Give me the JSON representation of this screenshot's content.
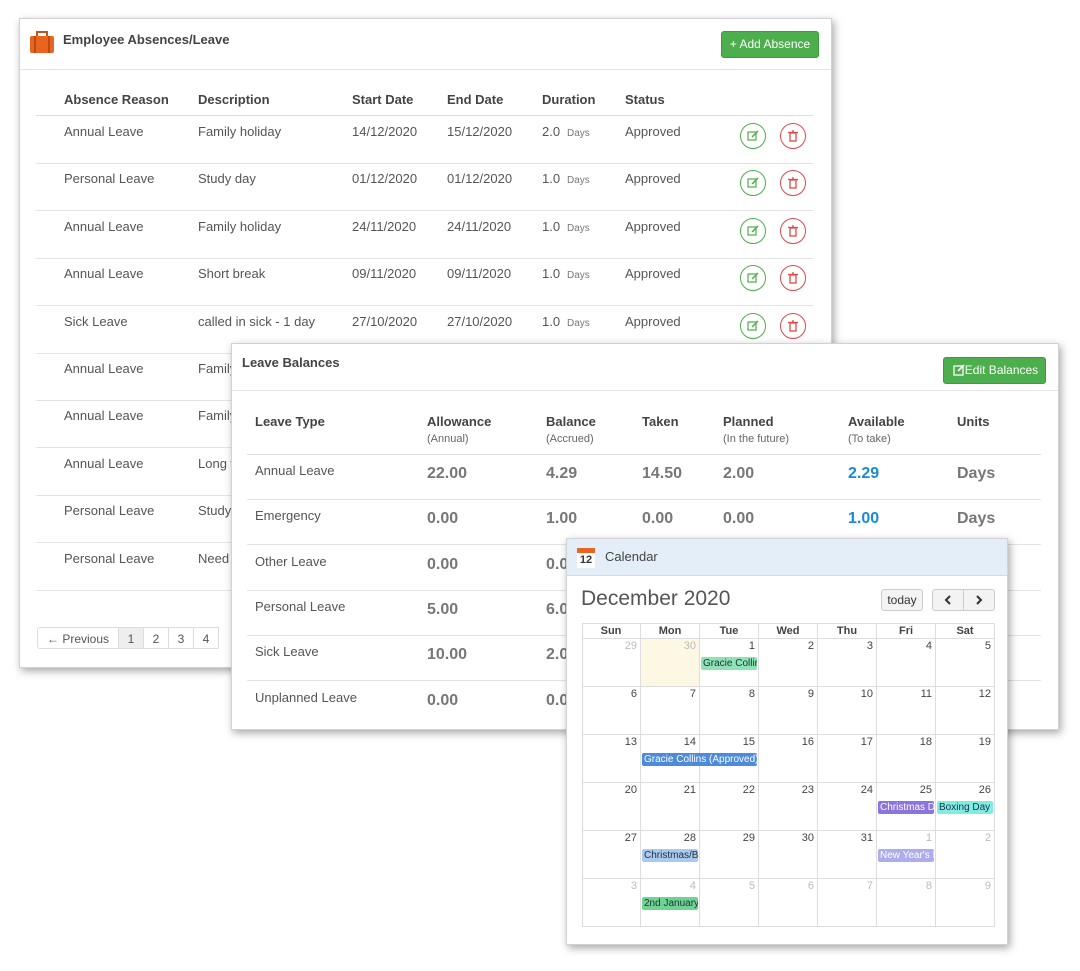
{
  "absences": {
    "title": "Employee Absences/Leave",
    "add_button": "+ Add Absence",
    "columns": [
      "Absence Reason",
      "Description",
      "Start Date",
      "End Date",
      "Duration",
      "Status"
    ],
    "rows": [
      [
        "Annual Leave",
        "Family holiday",
        "14/12/2020",
        "15/12/2020",
        "2.0",
        "Days",
        "Approved"
      ],
      [
        "Personal Leave",
        "Study day",
        "01/12/2020",
        "01/12/2020",
        "1.0",
        "Days",
        "Approved"
      ],
      [
        "Annual Leave",
        "Family holiday",
        "24/11/2020",
        "24/11/2020",
        "1.0",
        "Days",
        "Approved"
      ],
      [
        "Annual Leave",
        "Short break",
        "09/11/2020",
        "09/11/2020",
        "1.0",
        "Days",
        "Approved"
      ],
      [
        "Sick Leave",
        "called in sick - 1 day",
        "27/10/2020",
        "27/10/2020",
        "1.0",
        "Days",
        "Approved"
      ],
      [
        "Annual Leave",
        "Family"
      ],
      [
        "Annual Leave",
        "Family"
      ],
      [
        "Annual Leave",
        "Long w"
      ],
      [
        "Personal Leave",
        "Study"
      ],
      [
        "Personal Leave",
        "Need"
      ]
    ],
    "pagination": [
      "← Previous",
      "1",
      "2",
      "3",
      "4"
    ]
  },
  "balances": {
    "title": "Leave Balances",
    "edit_button": "Edit Balances",
    "columns": [
      {
        "label": "Leave Type"
      },
      {
        "label": "Allowance",
        "sub": "(Annual)"
      },
      {
        "label": "Balance",
        "sub": "(Accrued)"
      },
      {
        "label": "Taken"
      },
      {
        "label": "Planned",
        "sub": "(In the future)"
      },
      {
        "label": "Available",
        "sub": "(To take)"
      },
      {
        "label": "Units"
      }
    ],
    "rows": [
      [
        "Annual Leave",
        "22.00",
        "4.29",
        "14.50",
        "2.00",
        "2.29",
        "Days"
      ],
      [
        "Emergency",
        "0.00",
        "1.00",
        "0.00",
        "0.00",
        "1.00",
        "Days"
      ],
      [
        "Other Leave",
        "0.00",
        "0.0"
      ],
      [
        "Personal Leave",
        "5.00",
        "6.0"
      ],
      [
        "Sick Leave",
        "10.00",
        "2.0"
      ],
      [
        "Unplanned Leave",
        "0.00",
        "0.0"
      ]
    ]
  },
  "calendar": {
    "title": "Calendar",
    "icon_day": "12",
    "month": "December 2020",
    "today_button": "today",
    "today": 30,
    "weekdays": [
      "Sun",
      "Mon",
      "Tue",
      "Wed",
      "Thu",
      "Fri",
      "Sat"
    ],
    "weeks": [
      {
        "days": [
          29,
          30,
          1,
          2,
          3,
          4,
          5
        ],
        "events": [
          {
            "label": "Gracie Collin",
            "start": 1,
            "span": 1,
            "color": "#8de3b3",
            "text_color": "#234"
          }
        ]
      },
      {
        "days": [
          6,
          7,
          8,
          9,
          10,
          11,
          12
        ],
        "events": []
      },
      {
        "days": [
          13,
          14,
          15,
          16,
          17,
          18,
          19
        ],
        "events": [
          {
            "label": "Gracie Collins (Approved)",
            "start": 14,
            "span": 2,
            "color": "#4c8bdb",
            "text_color": "#ffffff"
          }
        ]
      },
      {
        "days": [
          20,
          21,
          22,
          23,
          24,
          25,
          26
        ],
        "events": [
          {
            "label": "Christmas D",
            "start": 25,
            "span": 1,
            "color": "#8c74de",
            "text_color": "#ffffff"
          },
          {
            "label": "Boxing Day (",
            "start": 26,
            "span": 1,
            "color": "#80ede3",
            "text_color": "#234"
          }
        ]
      },
      {
        "days": [
          27,
          28,
          29,
          30,
          31,
          1,
          2
        ],
        "events": [
          {
            "label": "Christmas/B",
            "start": 28,
            "span": 1,
            "color": "#a9c9ee",
            "text_color": "#234"
          },
          {
            "label": "New Year's I",
            "start": 1,
            "span": 1,
            "color": "#adadee",
            "text_color": "#ffffff"
          }
        ]
      },
      {
        "days": [
          3,
          4,
          5,
          6,
          7,
          8,
          9
        ],
        "events": [
          {
            "label": "2nd January",
            "start": 4,
            "span": 1,
            "color": "#6fd491",
            "text_color": "#234"
          }
        ]
      }
    ]
  }
}
